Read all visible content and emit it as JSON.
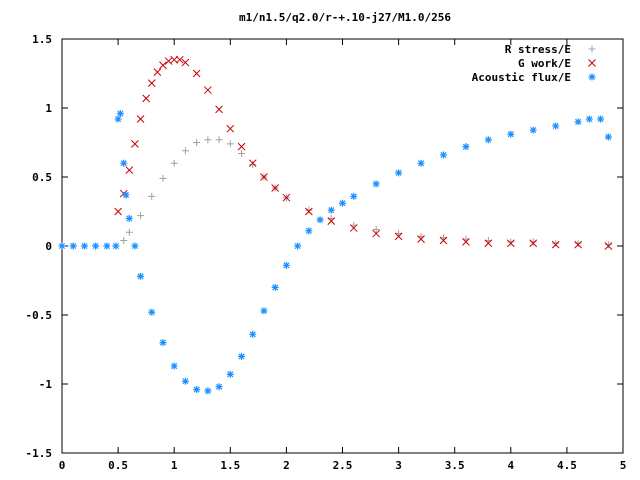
{
  "chart_data": {
    "type": "scatter",
    "title": "m1/n1.5/q2.0/r-+.10-j27/M1.0/256",
    "xlabel": "",
    "ylabel": "",
    "xlim": [
      0,
      5
    ],
    "ylim": [
      -1.5,
      1.5
    ],
    "x_ticks": [
      "0",
      "0.5",
      "1",
      "1.5",
      "2",
      "2.5",
      "3",
      "3.5",
      "4",
      "4.5",
      "5"
    ],
    "y_ticks": [
      "-1.5",
      "-1",
      "-0.5",
      "0",
      "0.5",
      "1",
      "1.5"
    ],
    "grid": false,
    "legend_position": "top-right",
    "series": [
      {
        "name": "R stress/E",
        "color": "#a0a0a0",
        "marker": "plus",
        "x": [
          0.0,
          0.1,
          0.2,
          0.3,
          0.4,
          0.48,
          0.55,
          0.6,
          0.7,
          0.8,
          0.9,
          1.0,
          1.1,
          1.2,
          1.3,
          1.4,
          1.5,
          1.6,
          1.7,
          1.8,
          1.9,
          2.0,
          2.2,
          2.4,
          2.6,
          2.8,
          3.0,
          3.2,
          3.4,
          3.6,
          3.8,
          4.0,
          4.2,
          4.4,
          4.6,
          4.87
        ],
        "y": [
          0.0,
          0.0,
          0.0,
          0.0,
          0.0,
          0.0,
          0.04,
          0.1,
          0.22,
          0.36,
          0.49,
          0.6,
          0.69,
          0.75,
          0.77,
          0.77,
          0.74,
          0.67,
          0.59,
          0.5,
          0.42,
          0.35,
          0.26,
          0.2,
          0.15,
          0.12,
          0.09,
          0.07,
          0.06,
          0.05,
          0.04,
          0.03,
          0.03,
          0.02,
          0.02,
          0.01
        ]
      },
      {
        "name": "G work/E",
        "color": "#cc0000",
        "marker": "cross",
        "x": [
          0.5,
          0.55,
          0.6,
          0.65,
          0.7,
          0.75,
          0.8,
          0.85,
          0.9,
          0.95,
          1.0,
          1.05,
          1.1,
          1.2,
          1.3,
          1.4,
          1.5,
          1.6,
          1.7,
          1.8,
          1.9,
          2.0,
          2.2,
          2.4,
          2.6,
          2.8,
          3.0,
          3.2,
          3.4,
          3.6,
          3.8,
          4.0,
          4.2,
          4.4,
          4.6,
          4.87
        ],
        "y": [
          0.25,
          0.38,
          0.55,
          0.74,
          0.92,
          1.07,
          1.18,
          1.26,
          1.31,
          1.34,
          1.35,
          1.35,
          1.33,
          1.25,
          1.13,
          0.99,
          0.85,
          0.72,
          0.6,
          0.5,
          0.42,
          0.35,
          0.25,
          0.18,
          0.13,
          0.09,
          0.07,
          0.05,
          0.04,
          0.03,
          0.02,
          0.02,
          0.02,
          0.01,
          0.01,
          0.0
        ]
      },
      {
        "name": "Acoustic flux/E",
        "color": "#1e90ff",
        "marker": "star",
        "x": [
          0.0,
          0.1,
          0.2,
          0.3,
          0.4,
          0.48,
          0.5,
          0.52,
          0.55,
          0.57,
          0.6,
          0.65,
          0.7,
          0.8,
          0.9,
          1.0,
          1.1,
          1.2,
          1.3,
          1.4,
          1.5,
          1.6,
          1.7,
          1.8,
          1.9,
          2.0,
          2.1,
          2.2,
          2.3,
          2.4,
          2.5,
          2.6,
          2.8,
          3.0,
          3.2,
          3.4,
          3.6,
          3.8,
          4.0,
          4.2,
          4.4,
          4.6,
          4.7,
          4.8,
          4.87
        ],
        "y": [
          0.0,
          0.0,
          0.0,
          0.0,
          0.0,
          0.0,
          0.92,
          0.96,
          0.6,
          0.37,
          0.2,
          0.0,
          -0.22,
          -0.48,
          -0.7,
          -0.87,
          -0.98,
          -1.04,
          -1.05,
          -1.02,
          -0.93,
          -0.8,
          -0.64,
          -0.47,
          -0.3,
          -0.14,
          0.0,
          0.11,
          0.19,
          0.26,
          0.31,
          0.36,
          0.45,
          0.53,
          0.6,
          0.66,
          0.72,
          0.77,
          0.81,
          0.84,
          0.87,
          0.9,
          0.92,
          0.92,
          0.79
        ]
      }
    ]
  }
}
